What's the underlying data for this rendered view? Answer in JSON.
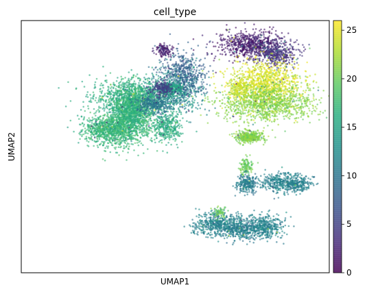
{
  "chart_data": {
    "type": "scatter",
    "title": "cell_type",
    "xlabel": "UMAP1",
    "ylabel": "UMAP2",
    "grid": false,
    "x_ticks": [],
    "y_ticks": [],
    "colorbar": {
      "colormap": "viridis",
      "range": [
        0,
        26
      ],
      "ticks": [
        0,
        5,
        10,
        15,
        20,
        25
      ],
      "tick_labels": [
        "0",
        "5",
        "10",
        "15",
        "20",
        "25"
      ]
    },
    "clusters": [
      {
        "x": 0.44,
        "y": 0.18,
        "sx": 0.12,
        "sy": 0.08,
        "value": 17,
        "n": 900
      },
      {
        "x": 0.67,
        "y": 0.5,
        "sx": 0.2,
        "sy": 0.1,
        "value": 16,
        "n": 1000
      },
      {
        "x": 0.63,
        "y": 0.33,
        "sx": 0.1,
        "sy": 0.15,
        "value": 17.5,
        "n": 800
      },
      {
        "x": 0.63,
        "y": 0.35,
        "sx": 0.08,
        "sy": 0.1,
        "value": 16.5,
        "n": 500
      },
      {
        "x": 0.95,
        "y": 0.2,
        "sx": 0.07,
        "sy": 0.08,
        "value": 16,
        "n": 350
      },
      {
        "x": 1.05,
        "y": 0.6,
        "sx": 0.12,
        "sy": 0.12,
        "value": 12,
        "n": 500
      },
      {
        "x": 1.1,
        "y": 0.75,
        "sx": 0.1,
        "sy": 0.12,
        "value": 8,
        "n": 450
      },
      {
        "x": 0.83,
        "y": 0.44,
        "sx": 0.08,
        "sy": 0.05,
        "value": 10,
        "n": 300
      },
      {
        "x": 0.99,
        "y": 0.6,
        "sx": 0.06,
        "sy": 0.04,
        "value": 15,
        "n": 200
      },
      {
        "x": 0.91,
        "y": 0.6,
        "sx": 0.05,
        "sy": 0.04,
        "value": 5,
        "n": 200
      },
      {
        "x": 1.7,
        "y": 1.05,
        "sx": 0.14,
        "sy": 0.07,
        "value": 2,
        "n": 700
      },
      {
        "x": 1.92,
        "y": 0.95,
        "sx": 0.1,
        "sy": 0.07,
        "value": 4,
        "n": 400
      },
      {
        "x": 1.83,
        "y": 0.65,
        "sx": 0.16,
        "sy": 0.12,
        "value": 24.5,
        "n": 1100
      },
      {
        "x": 1.85,
        "y": 0.45,
        "sx": 0.22,
        "sy": 0.1,
        "value": 21,
        "n": 1000
      },
      {
        "x": 1.6,
        "y": 0.6,
        "sx": 0.04,
        "sy": 0.06,
        "value": 24,
        "n": 150
      },
      {
        "x": 1.69,
        "y": 0.1,
        "sx": 0.06,
        "sy": 0.03,
        "value": 21,
        "n": 400
      },
      {
        "x": 1.66,
        "y": -0.2,
        "sx": 0.03,
        "sy": 0.04,
        "value": 20,
        "n": 120
      },
      {
        "x": 1.67,
        "y": -0.39,
        "sx": 0.05,
        "sy": 0.05,
        "value": 11,
        "n": 250
      },
      {
        "x": 1.97,
        "y": -0.37,
        "sx": 0.09,
        "sy": 0.05,
        "value": 11.5,
        "n": 350
      },
      {
        "x": 2.13,
        "y": -0.39,
        "sx": 0.06,
        "sy": 0.04,
        "value": 11,
        "n": 200
      },
      {
        "x": 1.4,
        "y": -0.8,
        "sx": 0.12,
        "sy": 0.06,
        "value": 11.5,
        "n": 500
      },
      {
        "x": 1.65,
        "y": -0.85,
        "sx": 0.12,
        "sy": 0.06,
        "value": 11,
        "n": 450
      },
      {
        "x": 1.85,
        "y": -0.82,
        "sx": 0.08,
        "sy": 0.06,
        "value": 11.5,
        "n": 300
      },
      {
        "x": 1.42,
        "y": -0.67,
        "sx": 0.03,
        "sy": 0.03,
        "value": 20,
        "n": 60
      },
      {
        "x": 0.92,
        "y": 1.0,
        "sx": 0.04,
        "sy": 0.03,
        "value": 2,
        "n": 120
      }
    ],
    "point_opacity": 0.6
  }
}
